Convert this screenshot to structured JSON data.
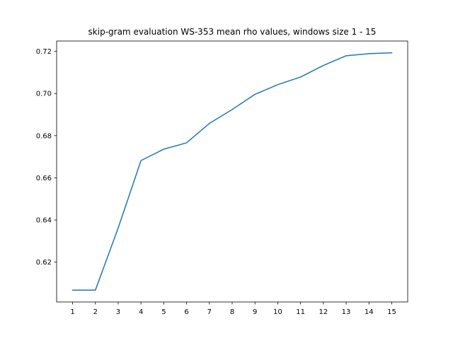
{
  "chart_data": {
    "type": "line",
    "title": "skip-gram evaluation WS-353 mean rho values, windows size 1 - 15",
    "xlabel": "",
    "ylabel": "",
    "x": [
      1,
      2,
      3,
      4,
      5,
      6,
      7,
      8,
      9,
      10,
      11,
      12,
      13,
      14,
      15
    ],
    "series": [
      {
        "values": [
          0.6067,
          0.6067,
          0.6362,
          0.6682,
          0.6736,
          0.6766,
          0.6858,
          0.6924,
          0.6996,
          0.7042,
          0.7078,
          0.7133,
          0.7179,
          0.7189,
          0.7193
        ],
        "color": "#1f77b4"
      }
    ],
    "xlim": [
      0.3,
      15.7
    ],
    "ylim": [
      0.6011,
      0.7249
    ],
    "xticks": [
      "1",
      "2",
      "3",
      "4",
      "5",
      "6",
      "7",
      "8",
      "9",
      "10",
      "11",
      "12",
      "13",
      "14",
      "15"
    ],
    "yticks": [
      "0.62",
      "0.64",
      "0.66",
      "0.68",
      "0.70",
      "0.72"
    ],
    "ytick_values": [
      0.62,
      0.64,
      0.66,
      0.68,
      0.7,
      0.72
    ],
    "grid": false,
    "legend": "none"
  }
}
